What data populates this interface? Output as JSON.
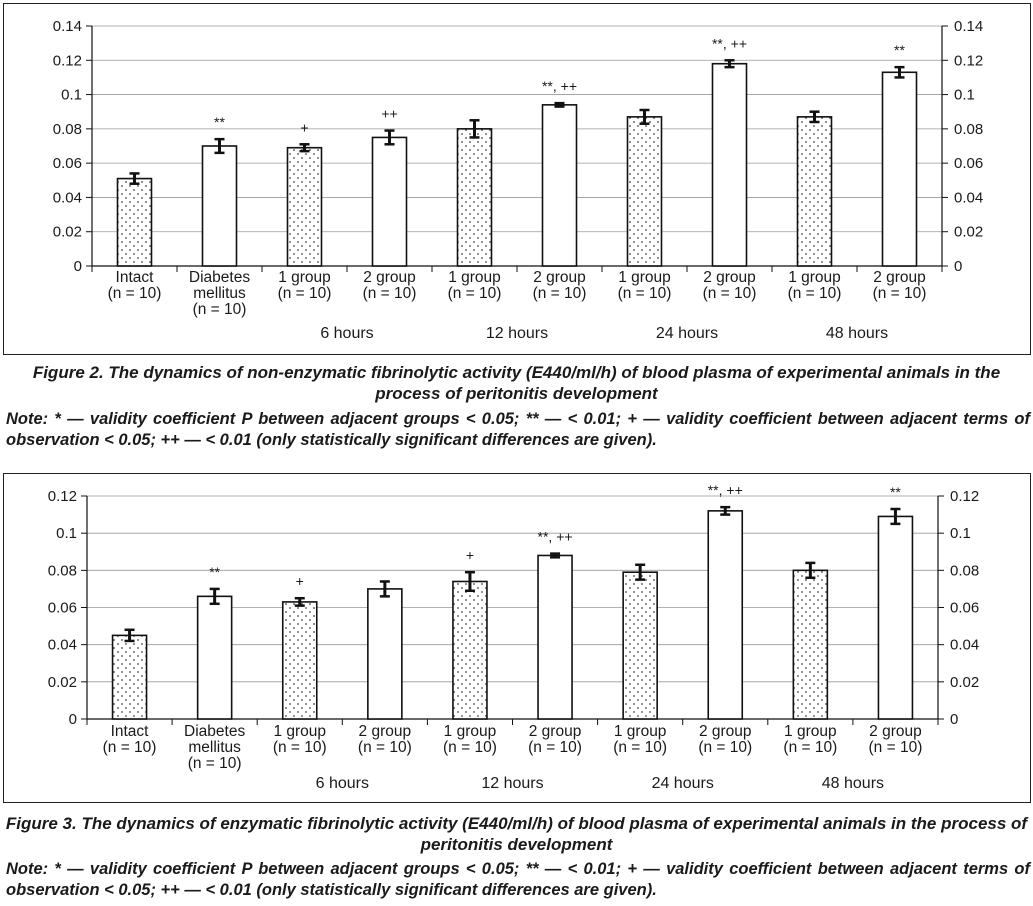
{
  "pattern_colors": {
    "bar_stroke": "#111111",
    "dots": "#444444",
    "grid": "#999999"
  },
  "figures": [
    {
      "caption": "Figure 2.  The dynamics of non-enzymatic fibrinolytic activity (E440/ml/h) of blood plasma of experimental animals in the process of peritonitis development",
      "note": "Note: * — validity coefficient P between adjacent groups < 0.05; ** — < 0.01; + — validity coefficient between adjacent terms of observation < 0.05; ++ — < 0.01 (only statistically significant differences are given).",
      "chart_data": {
        "type": "bar",
        "ylim": [
          0,
          0.14
        ],
        "yticks": [
          "0",
          "0.02",
          "0.04",
          "0.06",
          "0.08",
          "0.1",
          "0.12",
          "0.14"
        ],
        "grid": true,
        "categories": [
          [
            "Intact",
            "(n = 10)"
          ],
          [
            "Diabetes",
            "mellitus",
            "(n = 10)"
          ],
          [
            "1 group",
            "(n = 10)"
          ],
          [
            "2 group",
            "(n = 10)"
          ],
          [
            "1 group",
            "(n = 10)"
          ],
          [
            "2 group",
            "(n = 10)"
          ],
          [
            "1 group",
            "(n = 10)"
          ],
          [
            "2 group",
            "(n = 10)"
          ],
          [
            "1 group",
            "(n = 10)"
          ],
          [
            "2 group",
            "(n = 10)"
          ]
        ],
        "time_labels": [
          "6 hours",
          "12 hours",
          "24 hours",
          "48 hours"
        ],
        "values": [
          0.051,
          0.07,
          0.069,
          0.075,
          0.08,
          0.094,
          0.087,
          0.118,
          0.087,
          0.113
        ],
        "errors": [
          0.003,
          0.004,
          0.002,
          0.004,
          0.005,
          0.001,
          0.004,
          0.002,
          0.003,
          0.003
        ],
        "dotted": [
          true,
          false,
          true,
          false,
          true,
          false,
          true,
          false,
          true,
          false
        ],
        "annotations": [
          "",
          "**",
          "+",
          "++",
          "",
          "**, ++",
          "",
          "**, ++",
          "",
          "**"
        ]
      }
    },
    {
      "caption": "Figure 3.  The dynamics of enzymatic fibrinolytic activity (E440/ml/h) of blood plasma of experimental animals in the process of peritonitis development",
      "note": "Note: * — validity coefficient P between adjacent groups < 0.05; ** — < 0.01; + — validity coefficient between adjacent terms of observation < 0.05; ++ — < 0.01 (only statistically significant differences are given).",
      "chart_data": {
        "type": "bar",
        "ylim": [
          0,
          0.12
        ],
        "yticks": [
          "0",
          "0.02",
          "0.04",
          "0.06",
          "0.08",
          "0.1",
          "0.12"
        ],
        "grid": true,
        "categories": [
          [
            "Intact",
            "(n = 10)"
          ],
          [
            "Diabetes",
            "mellitus",
            "(n = 10)"
          ],
          [
            "1 group",
            "(n = 10)"
          ],
          [
            "2 group",
            "(n = 10)"
          ],
          [
            "1 group",
            "(n = 10)"
          ],
          [
            "2 group",
            "(n = 10)"
          ],
          [
            "1 group",
            "(n = 10)"
          ],
          [
            "2 group",
            "(n = 10)"
          ],
          [
            "1 group",
            "(n = 10)"
          ],
          [
            "2 group",
            "(n = 10)"
          ]
        ],
        "time_labels": [
          "6 hours",
          "12 hours",
          "24 hours",
          "48 hours"
        ],
        "values": [
          0.045,
          0.066,
          0.063,
          0.07,
          0.074,
          0.088,
          0.079,
          0.112,
          0.08,
          0.109
        ],
        "errors": [
          0.003,
          0.004,
          0.002,
          0.004,
          0.005,
          0.001,
          0.004,
          0.002,
          0.004,
          0.004
        ],
        "dotted": [
          true,
          false,
          true,
          false,
          true,
          false,
          true,
          false,
          true,
          false
        ],
        "annotations": [
          "",
          "**",
          "+",
          "",
          "+",
          "**, ++",
          "",
          "**, ++",
          "",
          "**"
        ]
      }
    }
  ]
}
